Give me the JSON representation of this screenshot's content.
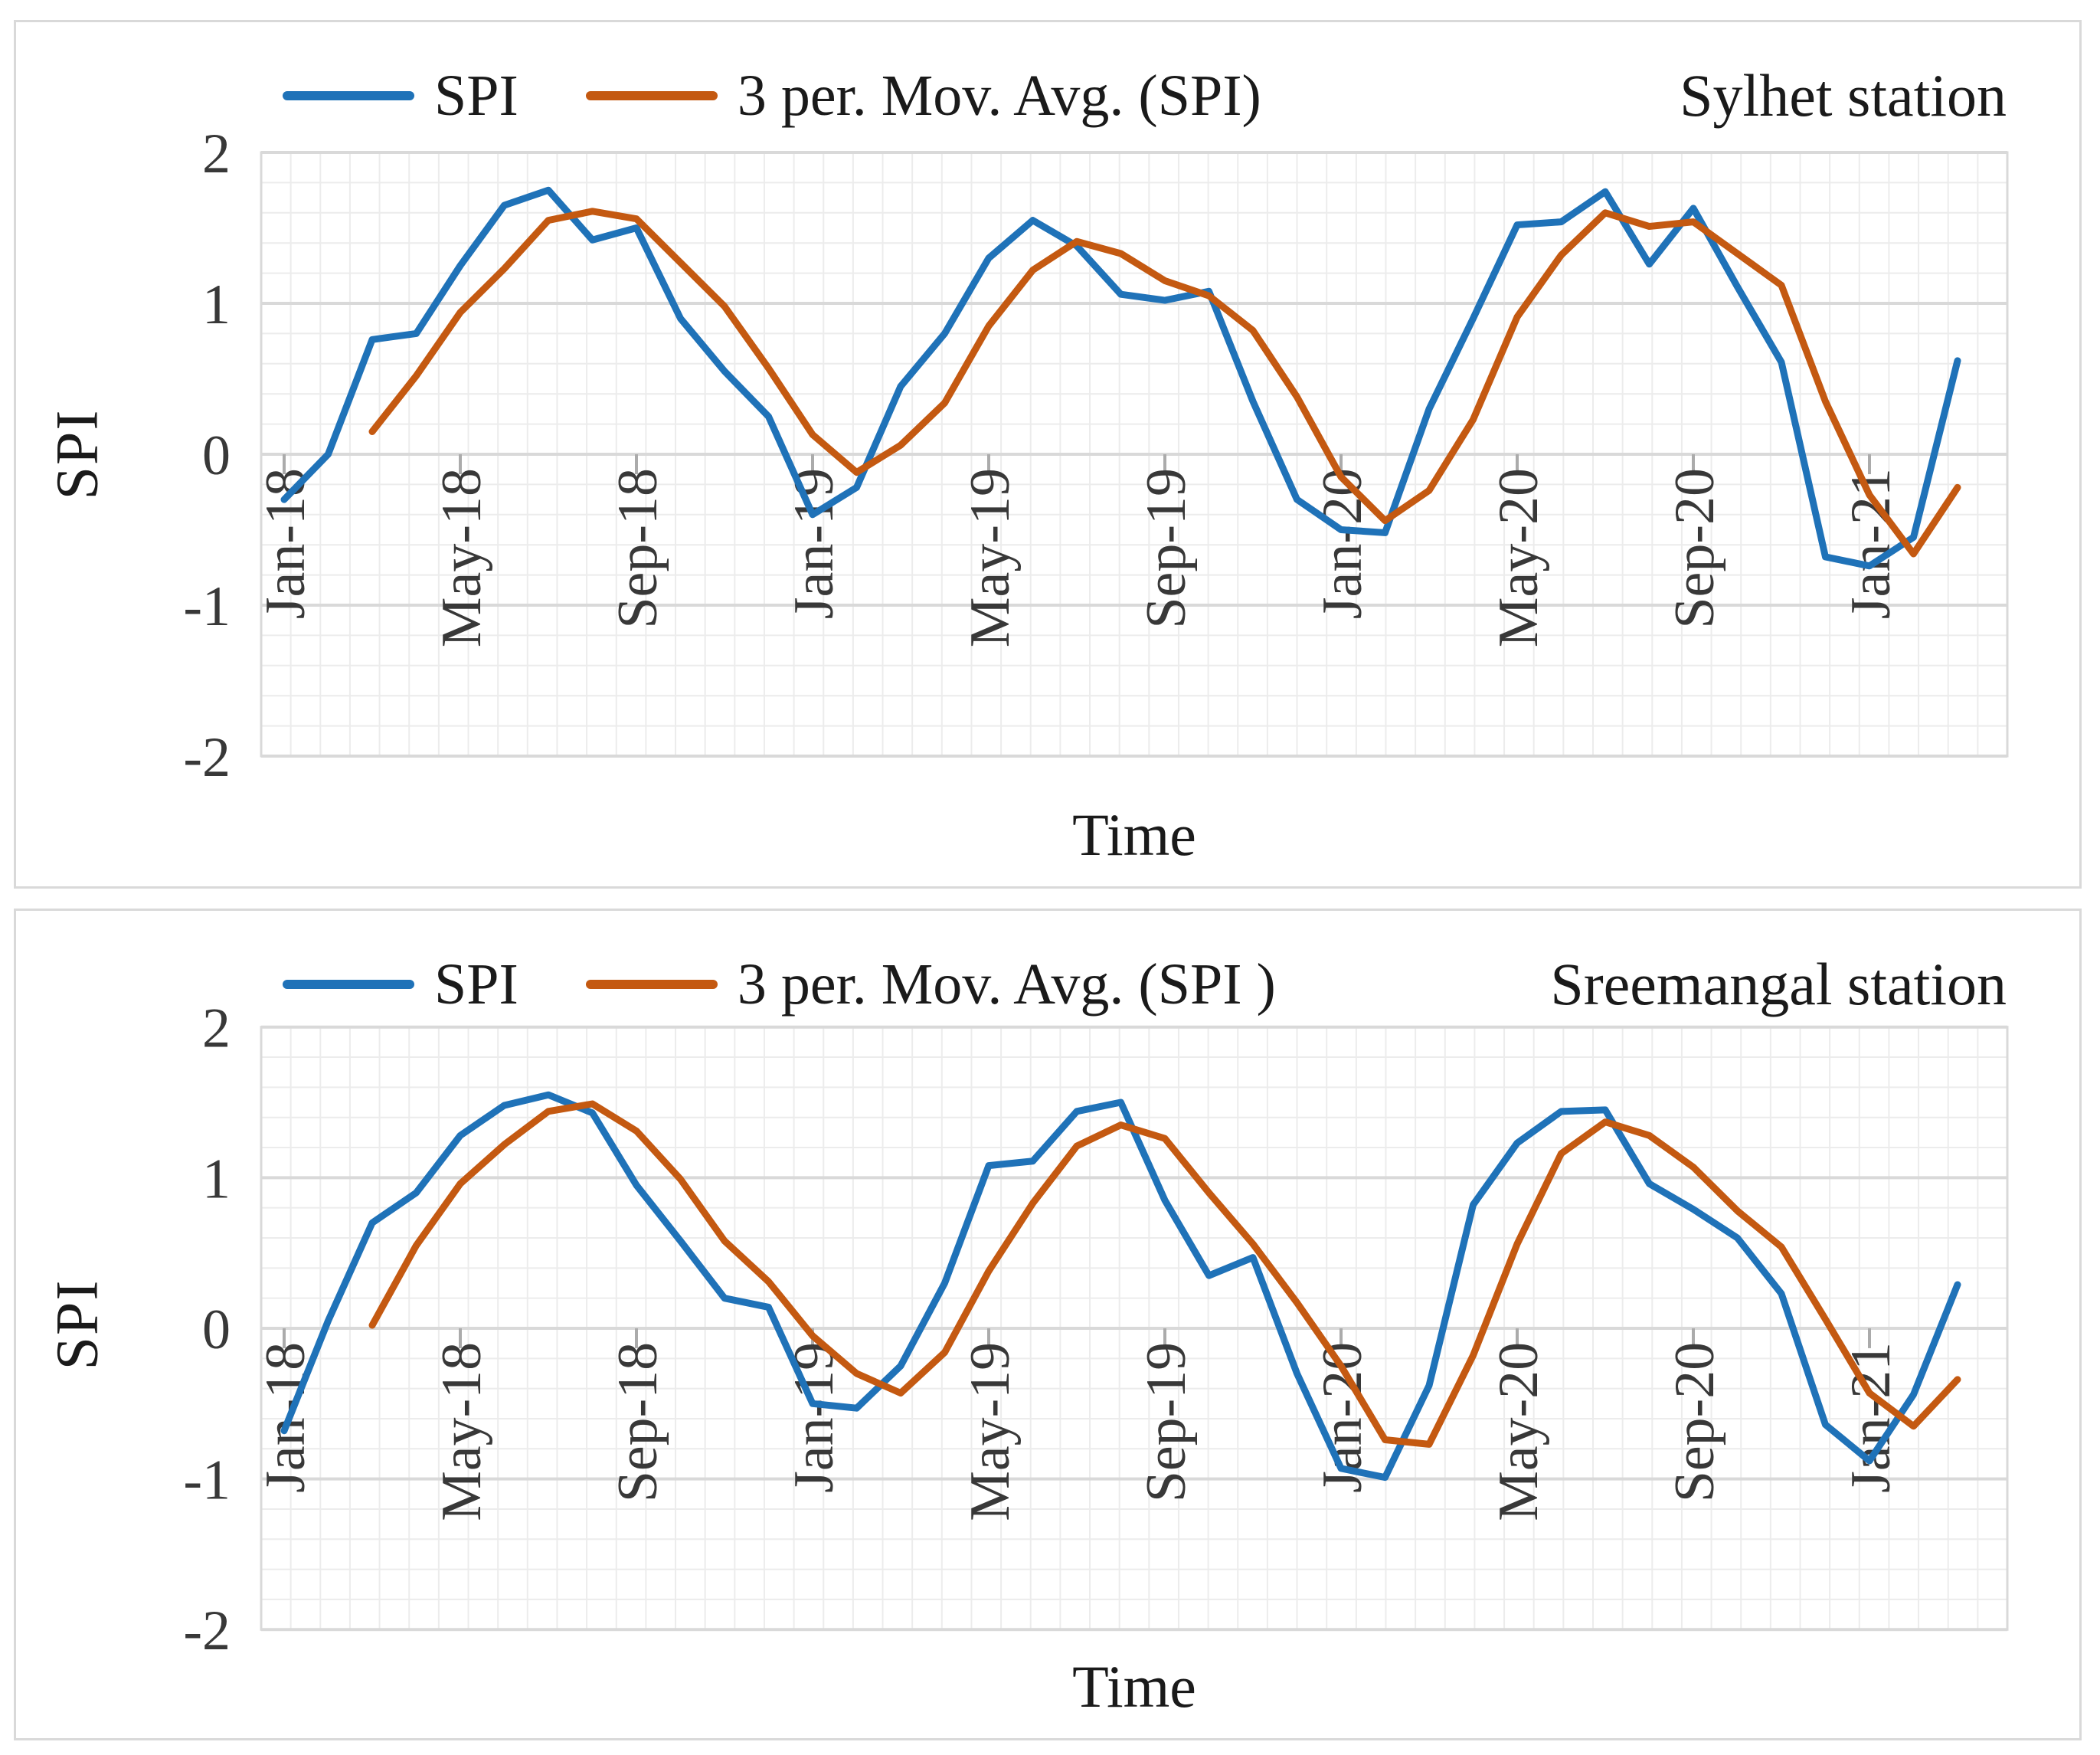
{
  "page_background": "#ffffff",
  "panel_border_color": "#d9d9d9",
  "grid_minor_color": "#ececec",
  "grid_major_color": "#d9d9d9",
  "tick_mark_color": "#ababab",
  "chart_data": [
    {
      "type": "line",
      "title": "Sylhet station",
      "xlabel": "Time",
      "ylabel": "SPI",
      "ylim": [
        -2,
        2
      ],
      "y_ticks": [
        2,
        1,
        0,
        -1,
        -2
      ],
      "minor_grid_step": 0.2,
      "grid": true,
      "legend_position": "top",
      "x": [
        "Jan-18",
        "Feb-18",
        "Mar-18",
        "Apr-18",
        "May-18",
        "Jun-18",
        "Jul-18",
        "Aug-18",
        "Sep-18",
        "Oct-18",
        "Nov-18",
        "Dec-18",
        "Jan-19",
        "Feb-19",
        "Mar-19",
        "Apr-19",
        "May-19",
        "Jun-19",
        "Jul-19",
        "Aug-19",
        "Sep-19",
        "Oct-19",
        "Nov-19",
        "Dec-19",
        "Jan-20",
        "Feb-20",
        "Mar-20",
        "Apr-20",
        "May-20",
        "Jun-20",
        "Jul-20",
        "Aug-20",
        "Sep-20",
        "Oct-20",
        "Nov-20",
        "Dec-20",
        "Jan-21",
        "Feb-21",
        "Mar-21"
      ],
      "x_tick_labels": [
        "Jan-18",
        "May-18",
        "Sep-18",
        "Jan-19",
        "May-19",
        "Sep-19",
        "Jan-20",
        "May-20",
        "Sep-20",
        "Jan-21"
      ],
      "series": [
        {
          "name": "SPI",
          "color": "#1f72b8",
          "values": [
            -0.3,
            0.0,
            0.76,
            0.8,
            1.25,
            1.65,
            1.75,
            1.42,
            1.5,
            0.9,
            0.55,
            0.25,
            -0.4,
            -0.22,
            0.45,
            0.8,
            1.3,
            1.55,
            1.38,
            1.06,
            1.02,
            1.08,
            0.35,
            -0.3,
            -0.5,
            -0.52,
            0.3,
            0.9,
            1.52,
            1.54,
            1.74,
            1.26,
            1.63,
            1.11,
            0.61,
            -0.68,
            -0.74,
            -0.55,
            0.62
          ]
        },
        {
          "name": "3 per. Mov. Avg. (SPI)",
          "color": "#c45911",
          "values": [
            null,
            null,
            0.15,
            0.52,
            0.94,
            1.23,
            1.55,
            1.61,
            1.56,
            1.27,
            0.98,
            0.57,
            0.13,
            -0.12,
            0.06,
            0.34,
            0.85,
            1.22,
            1.41,
            1.33,
            1.15,
            1.05,
            0.82,
            0.38,
            -0.15,
            -0.44,
            -0.24,
            0.23,
            0.91,
            1.32,
            1.6,
            1.51,
            1.54,
            1.33,
            1.12,
            0.35,
            -0.27,
            -0.66,
            -0.22
          ]
        }
      ]
    },
    {
      "type": "line",
      "title": "Sreemangal station",
      "xlabel": "Time",
      "ylabel": "SPI",
      "ylim": [
        -2,
        2
      ],
      "y_ticks": [
        2,
        1,
        0,
        -1,
        -2
      ],
      "minor_grid_step": 0.2,
      "grid": true,
      "legend_position": "top",
      "x": [
        "Jan-18",
        "Feb-18",
        "Mar-18",
        "Apr-18",
        "May-18",
        "Jun-18",
        "Jul-18",
        "Aug-18",
        "Sep-18",
        "Oct-18",
        "Nov-18",
        "Dec-18",
        "Jan-19",
        "Feb-19",
        "Mar-19",
        "Apr-19",
        "May-19",
        "Jun-19",
        "Jul-19",
        "Aug-19",
        "Sep-19",
        "Oct-19",
        "Nov-19",
        "Dec-19",
        "Jan-20",
        "Feb-20",
        "Mar-20",
        "Apr-20",
        "May-20",
        "Jun-20",
        "Jul-20",
        "Aug-20",
        "Sep-20",
        "Oct-20",
        "Nov-20",
        "Dec-20",
        "Jan-21",
        "Feb-21",
        "Mar-21"
      ],
      "x_tick_labels": [
        "Jan-18",
        "May-18",
        "Sep-18",
        "Jan-19",
        "May-19",
        "Sep-19",
        "Jan-20",
        "May-20",
        "Sep-20",
        "Jan-21"
      ],
      "series": [
        {
          "name": "SPI",
          "color": "#1f72b8",
          "values": [
            -0.68,
            0.05,
            0.7,
            0.9,
            1.28,
            1.48,
            1.55,
            1.43,
            0.95,
            0.58,
            0.2,
            0.14,
            -0.5,
            -0.53,
            -0.25,
            0.3,
            1.08,
            1.11,
            1.44,
            1.5,
            0.85,
            0.35,
            0.47,
            -0.3,
            -0.93,
            -0.99,
            -0.38,
            0.82,
            1.23,
            1.44,
            1.45,
            0.96,
            0.79,
            0.6,
            0.23,
            -0.64,
            -0.88,
            -0.44,
            0.29
          ]
        },
        {
          "name": "3 per. Mov. Avg. (SPI )",
          "color": "#c45911",
          "values": [
            null,
            null,
            0.02,
            0.55,
            0.96,
            1.22,
            1.44,
            1.49,
            1.31,
            0.99,
            0.58,
            0.31,
            -0.05,
            -0.3,
            -0.43,
            -0.16,
            0.38,
            0.83,
            1.21,
            1.35,
            1.26,
            0.9,
            0.56,
            0.17,
            -0.25,
            -0.74,
            -0.77,
            -0.18,
            0.56,
            1.16,
            1.37,
            1.28,
            1.07,
            0.78,
            0.54,
            0.06,
            -0.43,
            -0.65,
            -0.34
          ]
        }
      ]
    }
  ]
}
